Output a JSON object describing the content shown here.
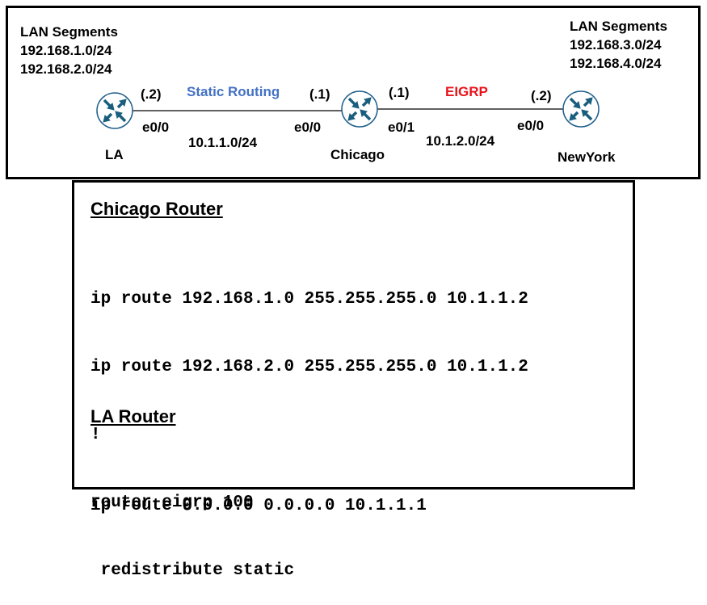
{
  "topology": {
    "la_lan": {
      "title": "LAN Segments",
      "nets": [
        "192.168.1.0/24",
        "192.168.2.0/24"
      ]
    },
    "ny_lan": {
      "title": "LAN Segments",
      "nets": [
        "192.168.3.0/24",
        "192.168.4.0/24"
      ]
    },
    "routers": {
      "la": "LA",
      "chicago": "Chicago",
      "newyork": "NewYork"
    },
    "link1": {
      "label": "Static Routing",
      "color": "#4472c4",
      "subnet": "10.1.1.0/24",
      "la_host": "(.2)",
      "la_if": "e0/0",
      "chi_host": "(.1)",
      "chi_if": "e0/0"
    },
    "link2": {
      "label": "EIGRP",
      "color": "#e8141b",
      "subnet": "10.1.2.0/24",
      "chi_host": "(.1)",
      "chi_if": "e0/1",
      "ny_host": "(.2)",
      "ny_if": "e0/0"
    },
    "router_icon_color": "#1a5e7e"
  },
  "config": {
    "chicago_title": "Chicago Router",
    "chicago_lines": [
      "ip route 192.168.1.0 255.255.255.0 10.1.1.2",
      "ip route 192.168.2.0 255.255.255.0 10.1.1.2",
      "!",
      "router eigrp 100",
      " redistribute static"
    ],
    "la_title": "LA Router",
    "la_lines": [
      "ip route 0.0.0.0 0.0.0.0 10.1.1.1"
    ]
  }
}
